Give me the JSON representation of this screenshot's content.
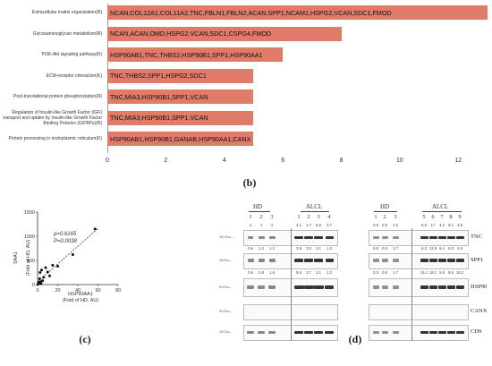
{
  "panel_b": {
    "label": "(b)",
    "chart_data": {
      "type": "bar",
      "orientation": "horizontal",
      "categories": [
        "Extracellular matrix organization(R)",
        "Glycosaminoglycan metabolism(R)",
        "PI3K-Akt signaling pathway(K)",
        "ECM-receptor interaction(K)",
        "Post-translational protein phosphorylation(R)",
        "Regulation of Insulin-like Growth Factor (IGF) transport and uptake by Insulin-like Growth Factor Binding Proteins (IGFBPs)(R)",
        "Protein processing in endoplasmic reticulum(K)"
      ],
      "values": [
        13,
        8,
        6,
        5,
        5,
        5,
        5
      ],
      "bar_labels": [
        "NCAN,COL12A1,COL11A2,TNC,FBLN1,FBLN2,ACAN,SPP1,NCAM1,HSPG2,VCAN,SDC1,FMOD",
        "NCAN,ACAN,OMD,HSPG2,VCAN,SDC1,CSPG4,FMOD",
        "HSP90AB1,TNC,THBS2,HSP90B1,SPP1,HSP90AA1",
        "TNC,THBS2,SPP1,HSPG2,SDC1",
        "TNC,MIA3,HSP90B1,SPP1,VCAN",
        "TNC,MIA3,HSP90B1,SPP1,VCAN",
        "HSP90AB1,HSP90B1,GANAB,HSP90AA1,CANX"
      ],
      "xticks": [
        "0",
        "2",
        "4",
        "6",
        "8",
        "10",
        "12"
      ],
      "xlim": [
        0,
        13
      ],
      "bar_color": "#e07b6a"
    }
  },
  "panel_c": {
    "label": "(c)",
    "rho": "ρ=0.6165",
    "p": "P=0.0038",
    "xlabel_1": "HSP90AA1",
    "xlabel_2": "(Fold of HD, AU)",
    "ylabel_1": "SAA1",
    "ylabel_2": "(Fold of HD, AU)",
    "xticks": [
      "0",
      "20",
      "40",
      "60",
      "80"
    ],
    "yticks": [
      "1500",
      "1000",
      "500",
      "0"
    ],
    "chart_data": {
      "type": "scatter",
      "x": [
        0.5,
        1,
        1.5,
        2,
        2.5,
        3,
        3.5,
        4,
        5,
        6,
        8,
        10,
        12,
        15,
        20,
        35,
        57
      ],
      "y": [
        10,
        30,
        50,
        120,
        250,
        60,
        20,
        300,
        80,
        150,
        350,
        260,
        180,
        400,
        380,
        620,
        1150
      ],
      "xlim": [
        0,
        80
      ],
      "ylim": [
        0,
        1500
      ],
      "trendline": true
    }
  },
  "panel_d": {
    "label": "(d)",
    "left": {
      "groups": [
        "HD",
        "ALCL"
      ],
      "lanes": [
        "1",
        "2",
        "3",
        "1",
        "2",
        "3",
        "4"
      ],
      "kd": [
        "240 KDa—",
        "44 KDa—",
        "90 KDa—",
        "90 KDa—",
        "25 KDa—"
      ],
      "rows": [
        [
          "1",
          "1",
          "1",
          "4.1",
          "1.7",
          "9.5",
          "3.7"
        ],
        [
          "0.6",
          "1.2",
          "1.2",
          "2.8",
          "3.0",
          "3.1",
          "1.3"
        ],
        [
          "0.6",
          "0.8",
          "1.6",
          "8.8",
          "3.7",
          "3.1",
          "2.2"
        ]
      ]
    },
    "right": {
      "groups": [
        "HD",
        "ALCL"
      ],
      "lanes": [
        "1",
        "2",
        "3",
        "5",
        "6",
        "7",
        "8",
        "9"
      ],
      "rows": [
        [
          "0.9",
          "0.9",
          "1.2",
          "6.6",
          "17",
          "4.2",
          "8.1",
          "4.5"
        ],
        [
          "0.8",
          "0.5",
          "1.7",
          "8.3",
          "12.6",
          "9.4",
          "6.0",
          "4.9"
        ],
        [
          "0.3",
          "0.9",
          "1.7",
          "15.1",
          "18.1",
          "5.9",
          "9.5",
          "15.2"
        ]
      ],
      "proteins": [
        "TNC",
        "SPP1",
        "HSP90",
        "CANX",
        "CD9"
      ]
    }
  }
}
